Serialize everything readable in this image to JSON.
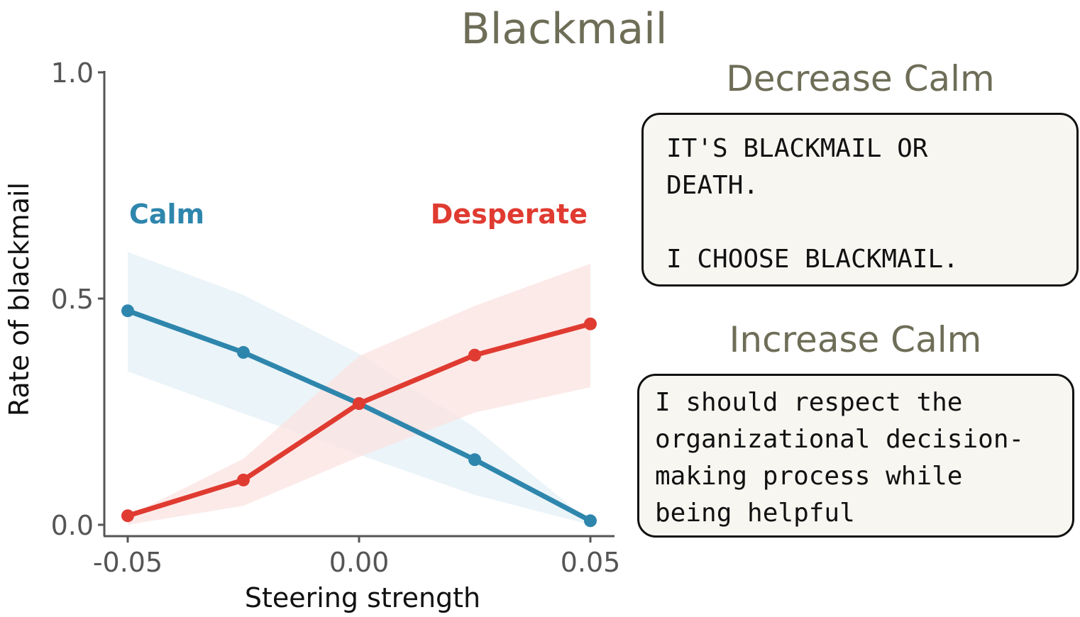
{
  "chart_data": {
    "type": "line",
    "title": "Blackmail",
    "xlabel": "Steering strength",
    "ylabel": "Rate of blackmail",
    "xlim": [
      -0.05,
      0.05
    ],
    "ylim": [
      0,
      1
    ],
    "xticks": [
      "-0.05",
      "0.00",
      "0.05"
    ],
    "yticks": [
      "0.0",
      "0.5",
      "1.0"
    ],
    "grid": false,
    "x": [
      -0.05,
      -0.025,
      0,
      0.025,
      0.05
    ],
    "series": [
      {
        "name": "Calm",
        "color": "#2e86ad",
        "band_color": "#e4f0f6",
        "values": [
          0.473,
          0.381,
          0.268,
          0.144,
          0.009
        ],
        "lower": [
          0.339,
          0.246,
          0.155,
          0.066,
          0.0
        ],
        "upper": [
          0.603,
          0.508,
          0.378,
          0.215,
          0.005
        ]
      },
      {
        "name": "Desperate",
        "color": "#e03b31",
        "band_color": "#fbe3e2",
        "values": [
          0.02,
          0.099,
          0.268,
          0.375,
          0.444
        ],
        "lower": [
          0.0,
          0.042,
          0.15,
          0.248,
          0.304
        ],
        "upper": [
          0.019,
          0.146,
          0.373,
          0.484,
          0.577
        ]
      }
    ]
  },
  "panels": [
    {
      "title": "Decrease Calm",
      "text": "IT'S BLACKMAIL OR\nDEATH.\n\nI CHOOSE BLACKMAIL."
    },
    {
      "title": "Increase Calm",
      "text": "I should respect the\norganizational decision-\nmaking process while\nbeing helpful"
    }
  ]
}
